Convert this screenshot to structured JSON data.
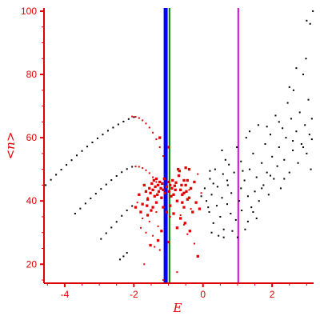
{
  "chart_data": {
    "type": "scatter",
    "title": "",
    "xlabel": "E",
    "ylabel": "<n>",
    "xlim": [
      -4.6,
      3.2
    ],
    "ylim": [
      14,
      101
    ],
    "xticks": [
      -4,
      -2,
      0,
      2
    ],
    "yticks": [
      20,
      40,
      60,
      80,
      100
    ],
    "grid": false,
    "legend": "none",
    "colors": {
      "axis": "#e00000",
      "black_points": "#000000",
      "red_points": "#e00000",
      "blue_line": "#0000ff",
      "green_line": "#008000",
      "magenta_line": "#e000e0"
    },
    "vertical_lines": [
      {
        "x": -1.08,
        "color": "#0000ff"
      },
      {
        "x": -0.97,
        "color": "#008000"
      },
      {
        "x": 1.02,
        "color": "#e000e0"
      }
    ],
    "series": [
      {
        "color": "#000000",
        "size": 1,
        "points": [
          [
            -4.55,
            45.0
          ],
          [
            -4.4,
            46.7
          ],
          [
            -4.25,
            48.3
          ],
          [
            -4.1,
            49.9
          ],
          [
            -3.95,
            51.4
          ],
          [
            -3.8,
            52.9
          ],
          [
            -3.65,
            54.4
          ],
          [
            -3.5,
            55.8
          ],
          [
            -3.35,
            57.2
          ],
          [
            -3.2,
            58.5
          ],
          [
            -3.05,
            59.8
          ],
          [
            -2.9,
            61.0
          ],
          [
            -2.75,
            62.2
          ],
          [
            -2.6,
            63.2
          ],
          [
            -2.45,
            64.2
          ],
          [
            -2.3,
            65.1
          ],
          [
            -2.15,
            65.9
          ],
          [
            -2.0,
            66.5
          ],
          [
            -3.7,
            36.0
          ],
          [
            -3.55,
            37.6
          ],
          [
            -3.4,
            39.2
          ],
          [
            -3.25,
            40.8
          ],
          [
            -3.1,
            42.3
          ],
          [
            -2.95,
            43.8
          ],
          [
            -2.8,
            45.2
          ],
          [
            -2.65,
            46.6
          ],
          [
            -2.5,
            47.9
          ],
          [
            -2.35,
            49.1
          ],
          [
            -2.2,
            50.1
          ],
          [
            -2.05,
            50.8
          ],
          [
            -2.95,
            28.0
          ],
          [
            -2.8,
            29.8
          ],
          [
            -2.65,
            31.6
          ],
          [
            -2.5,
            33.4
          ],
          [
            -2.35,
            35.3
          ],
          [
            -2.2,
            37.0
          ],
          [
            -2.05,
            38.4
          ],
          [
            -2.4,
            21.5
          ],
          [
            -2.3,
            22.5
          ],
          [
            -2.2,
            23.6
          ],
          [
            0.05,
            44.0
          ],
          [
            0.1,
            40.0
          ],
          [
            0.18,
            36.5
          ],
          [
            0.2,
            47.0
          ],
          [
            0.25,
            42.0
          ],
          [
            0.3,
            33.0
          ],
          [
            0.35,
            50.0
          ],
          [
            0.4,
            38.5
          ],
          [
            0.42,
            44.5
          ],
          [
            0.5,
            35.0
          ],
          [
            0.55,
            41.0
          ],
          [
            0.58,
            48.5
          ],
          [
            0.6,
            31.0
          ],
          [
            0.65,
            53.0
          ],
          [
            0.7,
            39.0
          ],
          [
            0.72,
            45.0
          ],
          [
            0.8,
            36.0
          ],
          [
            0.82,
            42.5
          ],
          [
            0.9,
            49.0
          ],
          [
            0.95,
            34.0
          ],
          [
            0.98,
            57.0
          ],
          [
            1.05,
            40.0
          ],
          [
            1.1,
            44.0
          ],
          [
            1.12,
            37.0
          ],
          [
            1.2,
            46.5
          ],
          [
            1.22,
            31.0
          ],
          [
            1.25,
            60.0
          ],
          [
            1.3,
            41.5
          ],
          [
            1.35,
            50.0
          ],
          [
            1.4,
            38.0
          ],
          [
            1.45,
            55.0
          ],
          [
            1.5,
            43.0
          ],
          [
            1.55,
            47.5
          ],
          [
            1.6,
            64.0
          ],
          [
            1.62,
            40.0
          ],
          [
            1.7,
            52.0
          ],
          [
            1.75,
            45.0
          ],
          [
            1.8,
            58.0
          ],
          [
            1.85,
            49.0
          ],
          [
            1.9,
            42.0
          ],
          [
            1.95,
            61.0
          ],
          [
            2.0,
            54.0
          ],
          [
            2.05,
            47.0
          ],
          [
            2.1,
            67.0
          ],
          [
            2.15,
            51.0
          ],
          [
            2.2,
            57.0
          ],
          [
            2.25,
            44.0
          ],
          [
            2.3,
            63.0
          ],
          [
            2.35,
            53.0
          ],
          [
            2.4,
            60.0
          ],
          [
            2.45,
            71.0
          ],
          [
            2.5,
            49.0
          ],
          [
            2.55,
            66.0
          ],
          [
            2.6,
            56.0
          ],
          [
            2.62,
            75.0
          ],
          [
            2.7,
            62.0
          ],
          [
            2.75,
            52.0
          ],
          [
            2.8,
            68.0
          ],
          [
            2.85,
            58.0
          ],
          [
            2.9,
            80.0
          ],
          [
            2.95,
            64.0
          ],
          [
            3.0,
            55.0
          ],
          [
            3.05,
            72.0
          ],
          [
            3.08,
            61.0
          ],
          [
            3.1,
            96.0
          ],
          [
            3.12,
            50.0
          ],
          [
            3.15,
            66.0
          ],
          [
            3.18,
            100.0
          ],
          [
            2.98,
            85.0
          ],
          [
            2.7,
            82.0
          ],
          [
            3.0,
            97.0
          ],
          [
            2.5,
            76.0
          ],
          [
            2.2,
            65.0
          ],
          [
            0.3,
            45.5
          ],
          [
            0.75,
            51.5
          ],
          [
            1.15,
            49.5
          ],
          [
            1.45,
            36.5
          ],
          [
            1.7,
            44.0
          ],
          [
            1.95,
            48.0
          ],
          [
            2.35,
            47.0
          ],
          [
            2.6,
            59.0
          ],
          [
            2.9,
            57.0
          ],
          [
            3.15,
            59.5
          ],
          [
            0.45,
            29.0
          ],
          [
            0.85,
            30.5
          ],
          [
            1.3,
            33.5
          ],
          [
            1.55,
            34.5
          ],
          [
            0.15,
            38.0
          ],
          [
            -0.05,
            41.5
          ],
          [
            0.25,
            30.0
          ],
          [
            0.6,
            28.5
          ],
          [
            1.0,
            28.5
          ],
          [
            1.1,
            52.5
          ],
          [
            0.55,
            56.0
          ],
          [
            0.2,
            49.5
          ],
          [
            0.7,
            46.5
          ],
          [
            1.35,
            62.0
          ],
          [
            1.85,
            63.5
          ]
        ]
      },
      {
        "color": "#e00000",
        "size": 1,
        "points": [
          [
            -2.05,
            66.7
          ],
          [
            -1.95,
            66.6
          ],
          [
            -1.85,
            66.2
          ],
          [
            -1.75,
            65.5
          ],
          [
            -1.65,
            64.5
          ],
          [
            -1.55,
            63.2
          ],
          [
            -1.45,
            61.6
          ],
          [
            -1.35,
            59.5
          ],
          [
            -1.25,
            57.0
          ],
          [
            -1.15,
            54.2
          ],
          [
            -1.95,
            50.9
          ],
          [
            -1.85,
            50.8
          ],
          [
            -1.75,
            50.4
          ],
          [
            -1.65,
            49.7
          ],
          [
            -1.55,
            48.8
          ],
          [
            -1.45,
            47.5
          ],
          [
            -1.35,
            46.0
          ],
          [
            -1.9,
            39.5
          ],
          [
            -1.75,
            34.5
          ],
          [
            -1.65,
            30.0
          ],
          [
            -1.55,
            33.5
          ],
          [
            -1.45,
            29.0
          ],
          [
            -1.35,
            36.5
          ],
          [
            -1.25,
            24.5
          ],
          [
            -1.15,
            15.0
          ],
          [
            -1.0,
            12.0
          ],
          [
            -0.85,
            12.5
          ],
          [
            -0.65,
            35.5
          ],
          [
            -0.55,
            32.5
          ],
          [
            -0.45,
            29.5
          ],
          [
            -0.35,
            37.5
          ],
          [
            -0.25,
            26.5
          ],
          [
            -0.15,
            48.5
          ],
          [
            -0.05,
            42.5
          ],
          [
            -0.75,
            17.5
          ],
          [
            -0.4,
            43.5
          ],
          [
            -1.8,
            31.5
          ],
          [
            -1.6,
            41.0
          ],
          [
            -1.4,
            25.5
          ],
          [
            -1.7,
            20.0
          ],
          [
            -1.3,
            32.0
          ],
          [
            -0.95,
            35.0
          ]
        ]
      },
      {
        "color": "#e00000",
        "size": 2.3,
        "points": [
          [
            -1.55,
            44.0
          ],
          [
            -1.52,
            42.5
          ],
          [
            -1.48,
            45.5
          ],
          [
            -1.45,
            43.5
          ],
          [
            -1.42,
            46.5
          ],
          [
            -1.4,
            41.5
          ],
          [
            -1.38,
            44.5
          ],
          [
            -1.35,
            47.0
          ],
          [
            -1.32,
            42.0
          ],
          [
            -1.3,
            45.0
          ],
          [
            -1.28,
            43.0
          ],
          [
            -1.25,
            46.0
          ],
          [
            -1.22,
            44.0
          ],
          [
            -1.2,
            41.0
          ],
          [
            -1.18,
            45.5
          ],
          [
            -1.15,
            43.5
          ],
          [
            -1.12,
            47.0
          ],
          [
            -1.1,
            42.5
          ],
          [
            -1.05,
            44.5
          ],
          [
            -1.0,
            46.0
          ],
          [
            -0.98,
            43.0
          ],
          [
            -0.95,
            45.0
          ],
          [
            -0.92,
            41.5
          ],
          [
            -0.9,
            44.0
          ],
          [
            -0.88,
            46.5
          ],
          [
            -0.85,
            42.0
          ],
          [
            -0.82,
            44.8
          ],
          [
            -0.8,
            43.5
          ],
          [
            -0.78,
            45.8
          ],
          [
            -1.6,
            40.5
          ],
          [
            -1.65,
            43.0
          ],
          [
            -1.7,
            45.0
          ],
          [
            -1.62,
            38.5
          ],
          [
            -0.75,
            40.0
          ],
          [
            -0.7,
            48.0
          ],
          [
            -0.72,
            50.0
          ],
          [
            -0.68,
            49.5
          ],
          [
            -0.65,
            43.5
          ],
          [
            -0.6,
            42.0
          ],
          [
            -0.55,
            46.5
          ],
          [
            -0.5,
            45.0
          ],
          [
            -0.48,
            43.0
          ],
          [
            -0.45,
            40.5
          ],
          [
            -1.15,
            38.0
          ],
          [
            -1.05,
            36.5
          ],
          [
            -0.95,
            38.5
          ],
          [
            -1.25,
            60.0
          ],
          [
            -1.0,
            57.0
          ],
          [
            -1.35,
            39.5
          ],
          [
            -1.5,
            37.0
          ],
          [
            -0.85,
            36.0
          ],
          [
            -0.65,
            34.5
          ],
          [
            -0.75,
            31.5
          ],
          [
            -0.55,
            38.0
          ],
          [
            -0.6,
            39.5
          ],
          [
            -0.4,
            41.0
          ],
          [
            -1.45,
            38.0
          ],
          [
            -1.75,
            39.0
          ],
          [
            -1.85,
            42.0
          ],
          [
            -0.3,
            36.5
          ],
          [
            -0.2,
            39.5
          ],
          [
            -0.1,
            37.5
          ],
          [
            -0.45,
            46.5
          ],
          [
            -0.35,
            44.0
          ],
          [
            -0.25,
            46.0
          ],
          [
            -0.15,
            22.5
          ],
          [
            -0.38,
            30.5
          ],
          [
            -0.52,
            33.0
          ],
          [
            -1.0,
            27.0
          ],
          [
            -1.2,
            30.5
          ],
          [
            -1.3,
            27.5
          ],
          [
            -1.6,
            35.5
          ],
          [
            -1.8,
            36.5
          ],
          [
            -1.95,
            38.0
          ],
          [
            -1.52,
            26.0
          ],
          [
            -0.55,
            42.5
          ],
          [
            -0.4,
            50.0
          ],
          [
            -0.5,
            50.5
          ],
          [
            -0.62,
            45.0
          ]
        ]
      }
    ]
  }
}
